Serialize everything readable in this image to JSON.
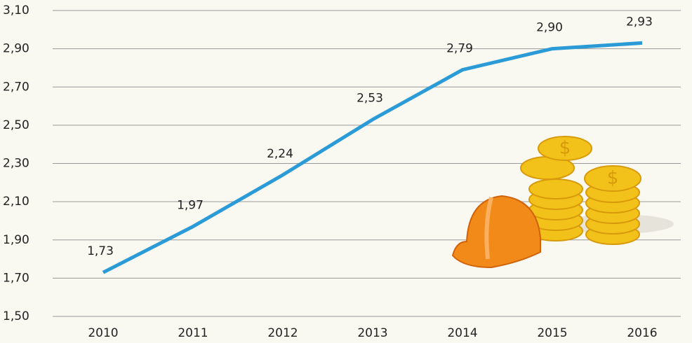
{
  "chart_data": {
    "type": "line",
    "categories": [
      "2010",
      "2011",
      "2012",
      "2013",
      "2014",
      "2015",
      "2016"
    ],
    "series": [
      {
        "color": "#2b9bd7",
        "values": [
          1.73,
          1.97,
          2.24,
          2.53,
          2.79,
          2.9,
          2.93
        ],
        "value_labels": [
          "1,73",
          "1,97",
          "2,24",
          "2,53",
          "2,79",
          "2,90",
          "2,93"
        ]
      }
    ],
    "ylim": [
      1.5,
      3.1
    ],
    "yticks": [
      {
        "value": 1.5,
        "label": "1,50"
      },
      {
        "value": 1.7,
        "label": "1,70"
      },
      {
        "value": 1.9,
        "label": "1,90"
      },
      {
        "value": 2.1,
        "label": "2,10"
      },
      {
        "value": 2.3,
        "label": "2,30"
      },
      {
        "value": 2.5,
        "label": "2,50"
      },
      {
        "value": 2.7,
        "label": "2,70"
      },
      {
        "value": 2.9,
        "label": "2,90"
      },
      {
        "value": 3.1,
        "label": "3,10"
      }
    ],
    "grid": true
  }
}
